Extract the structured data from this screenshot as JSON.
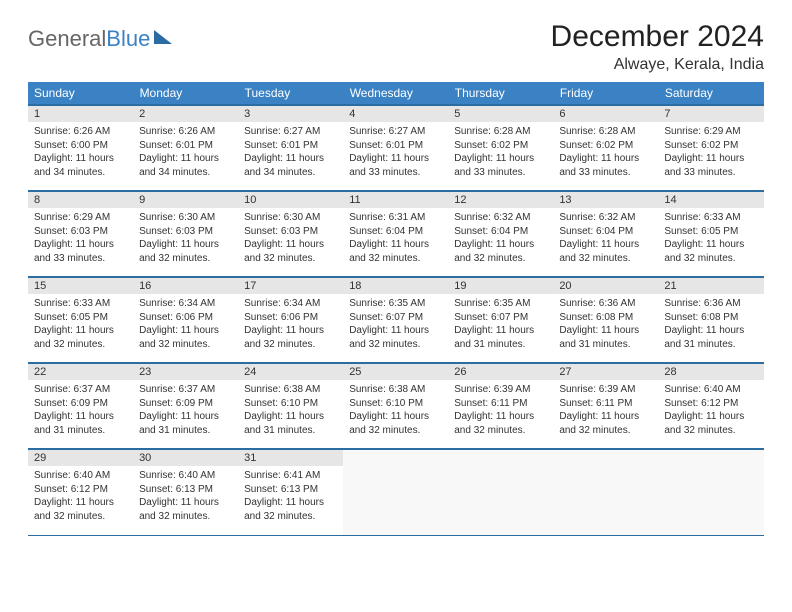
{
  "brand": {
    "part1": "General",
    "part2": "Blue"
  },
  "title": "December 2024",
  "location": "Alwaye, Kerala, India",
  "headers": [
    "Sunday",
    "Monday",
    "Tuesday",
    "Wednesday",
    "Thursday",
    "Friday",
    "Saturday"
  ],
  "colors": {
    "header_bg": "#3b82c4",
    "header_fg": "#ffffff",
    "border": "#2b6ca3",
    "daynum_bg": "#e6e6e6",
    "text": "#333333",
    "page_bg": "#ffffff"
  },
  "weeks": [
    [
      {
        "n": "1",
        "sunrise": "6:26 AM",
        "sunset": "6:00 PM",
        "day_h": "11",
        "day_m": "34"
      },
      {
        "n": "2",
        "sunrise": "6:26 AM",
        "sunset": "6:01 PM",
        "day_h": "11",
        "day_m": "34"
      },
      {
        "n": "3",
        "sunrise": "6:27 AM",
        "sunset": "6:01 PM",
        "day_h": "11",
        "day_m": "34"
      },
      {
        "n": "4",
        "sunrise": "6:27 AM",
        "sunset": "6:01 PM",
        "day_h": "11",
        "day_m": "33"
      },
      {
        "n": "5",
        "sunrise": "6:28 AM",
        "sunset": "6:02 PM",
        "day_h": "11",
        "day_m": "33"
      },
      {
        "n": "6",
        "sunrise": "6:28 AM",
        "sunset": "6:02 PM",
        "day_h": "11",
        "day_m": "33"
      },
      {
        "n": "7",
        "sunrise": "6:29 AM",
        "sunset": "6:02 PM",
        "day_h": "11",
        "day_m": "33"
      }
    ],
    [
      {
        "n": "8",
        "sunrise": "6:29 AM",
        "sunset": "6:03 PM",
        "day_h": "11",
        "day_m": "33"
      },
      {
        "n": "9",
        "sunrise": "6:30 AM",
        "sunset": "6:03 PM",
        "day_h": "11",
        "day_m": "32"
      },
      {
        "n": "10",
        "sunrise": "6:30 AM",
        "sunset": "6:03 PM",
        "day_h": "11",
        "day_m": "32"
      },
      {
        "n": "11",
        "sunrise": "6:31 AM",
        "sunset": "6:04 PM",
        "day_h": "11",
        "day_m": "32"
      },
      {
        "n": "12",
        "sunrise": "6:32 AM",
        "sunset": "6:04 PM",
        "day_h": "11",
        "day_m": "32"
      },
      {
        "n": "13",
        "sunrise": "6:32 AM",
        "sunset": "6:04 PM",
        "day_h": "11",
        "day_m": "32"
      },
      {
        "n": "14",
        "sunrise": "6:33 AM",
        "sunset": "6:05 PM",
        "day_h": "11",
        "day_m": "32"
      }
    ],
    [
      {
        "n": "15",
        "sunrise": "6:33 AM",
        "sunset": "6:05 PM",
        "day_h": "11",
        "day_m": "32"
      },
      {
        "n": "16",
        "sunrise": "6:34 AM",
        "sunset": "6:06 PM",
        "day_h": "11",
        "day_m": "32"
      },
      {
        "n": "17",
        "sunrise": "6:34 AM",
        "sunset": "6:06 PM",
        "day_h": "11",
        "day_m": "32"
      },
      {
        "n": "18",
        "sunrise": "6:35 AM",
        "sunset": "6:07 PM",
        "day_h": "11",
        "day_m": "32"
      },
      {
        "n": "19",
        "sunrise": "6:35 AM",
        "sunset": "6:07 PM",
        "day_h": "11",
        "day_m": "31"
      },
      {
        "n": "20",
        "sunrise": "6:36 AM",
        "sunset": "6:08 PM",
        "day_h": "11",
        "day_m": "31"
      },
      {
        "n": "21",
        "sunrise": "6:36 AM",
        "sunset": "6:08 PM",
        "day_h": "11",
        "day_m": "31"
      }
    ],
    [
      {
        "n": "22",
        "sunrise": "6:37 AM",
        "sunset": "6:09 PM",
        "day_h": "11",
        "day_m": "31"
      },
      {
        "n": "23",
        "sunrise": "6:37 AM",
        "sunset": "6:09 PM",
        "day_h": "11",
        "day_m": "31"
      },
      {
        "n": "24",
        "sunrise": "6:38 AM",
        "sunset": "6:10 PM",
        "day_h": "11",
        "day_m": "31"
      },
      {
        "n": "25",
        "sunrise": "6:38 AM",
        "sunset": "6:10 PM",
        "day_h": "11",
        "day_m": "32"
      },
      {
        "n": "26",
        "sunrise": "6:39 AM",
        "sunset": "6:11 PM",
        "day_h": "11",
        "day_m": "32"
      },
      {
        "n": "27",
        "sunrise": "6:39 AM",
        "sunset": "6:11 PM",
        "day_h": "11",
        "day_m": "32"
      },
      {
        "n": "28",
        "sunrise": "6:40 AM",
        "sunset": "6:12 PM",
        "day_h": "11",
        "day_m": "32"
      }
    ],
    [
      {
        "n": "29",
        "sunrise": "6:40 AM",
        "sunset": "6:12 PM",
        "day_h": "11",
        "day_m": "32"
      },
      {
        "n": "30",
        "sunrise": "6:40 AM",
        "sunset": "6:13 PM",
        "day_h": "11",
        "day_m": "32"
      },
      {
        "n": "31",
        "sunrise": "6:41 AM",
        "sunset": "6:13 PM",
        "day_h": "11",
        "day_m": "32"
      },
      {
        "empty": true
      },
      {
        "empty": true
      },
      {
        "empty": true
      },
      {
        "empty": true
      }
    ]
  ],
  "labels": {
    "sunrise": "Sunrise:",
    "sunset": "Sunset:",
    "daylight_prefix": "Daylight:",
    "hours_word": "hours",
    "and_word": "and",
    "minutes_word": "minutes."
  }
}
